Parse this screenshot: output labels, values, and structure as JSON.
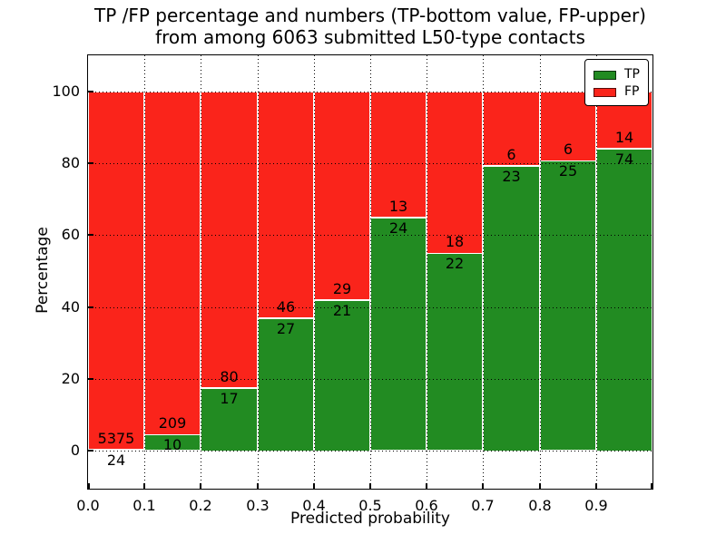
{
  "figure": {
    "title_lines": [
      "TP /FP percentage and numbers (TP-bottom value, FP-upper)",
      "from among 6063 submitted L50-type contacts"
    ]
  },
  "chart_data": {
    "type": "bar",
    "stacked": true,
    "normalized_to_percent": true,
    "title": "TP /FP percentage and numbers (TP-bottom value, FP-upper) from among 6063 submitted L50-type contacts",
    "xlabel": "Predicted probability",
    "ylabel": "Percentage",
    "total_contacts": 6063,
    "bin_width": 0.1,
    "bin_starts": [
      0.0,
      0.1,
      0.2,
      0.3,
      0.4,
      0.5,
      0.6,
      0.7,
      0.8,
      0.9
    ],
    "x_tick_labels": [
      "0.0",
      "0.1",
      "0.2",
      "0.3",
      "0.4",
      "0.5",
      "0.6",
      "0.7",
      "0.8",
      "0.9"
    ],
    "y_ticks": [
      0,
      20,
      40,
      60,
      80,
      100
    ],
    "xlim": [
      0,
      1
    ],
    "ylim": [
      -10.5,
      110
    ],
    "grid": true,
    "grid_style": "dotted",
    "series": [
      {
        "name": "TP",
        "color": "#228b22",
        "counts": [
          24,
          10,
          17,
          27,
          21,
          24,
          22,
          23,
          25,
          74
        ]
      },
      {
        "name": "FP",
        "color": "#fa241b",
        "counts": [
          5375,
          209,
          80,
          46,
          29,
          13,
          18,
          6,
          6,
          14
        ]
      }
    ],
    "tp_percent_heights": [
      0.44,
      4.57,
      17.53,
      36.99,
      42.0,
      64.86,
      55.0,
      79.31,
      80.65,
      84.09
    ],
    "legend": {
      "position": "upper right",
      "entries": [
        "TP",
        "FP"
      ]
    }
  }
}
